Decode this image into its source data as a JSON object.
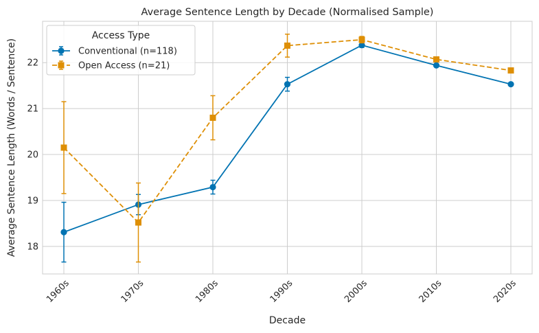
{
  "chart_data": {
    "type": "line",
    "title": "Average Sentence Length by Decade (Normalised Sample)",
    "xlabel": "Decade",
    "ylabel": "Average Sentence Length (Words / Sentence)",
    "categories": [
      "1960s",
      "1970s",
      "1980s",
      "1990s",
      "2000s",
      "2010s",
      "2020s"
    ],
    "ylim": [
      17.4,
      22.9
    ],
    "yticks": [
      18,
      19,
      20,
      21,
      22
    ],
    "grid": true,
    "legend": {
      "title": "Access Type",
      "placement": "top-left"
    },
    "series": [
      {
        "name": "Conventional (n=118)",
        "color": "#0173b2",
        "linestyle": "solid",
        "marker": "circle",
        "values": [
          18.31,
          18.91,
          19.29,
          21.53,
          22.38,
          21.94,
          21.53
        ],
        "errors": [
          0.65,
          0.22,
          0.15,
          0.15,
          0.05,
          0.0,
          0.0
        ]
      },
      {
        "name": "Open Access (n=21)",
        "color": "#de8f05",
        "linestyle": "dashed",
        "marker": "square",
        "values": [
          20.15,
          18.52,
          20.8,
          22.37,
          22.5,
          22.07,
          21.83
        ],
        "errors": [
          1.0,
          0.86,
          0.48,
          0.25,
          0.07,
          0.0,
          0.0
        ]
      }
    ]
  }
}
